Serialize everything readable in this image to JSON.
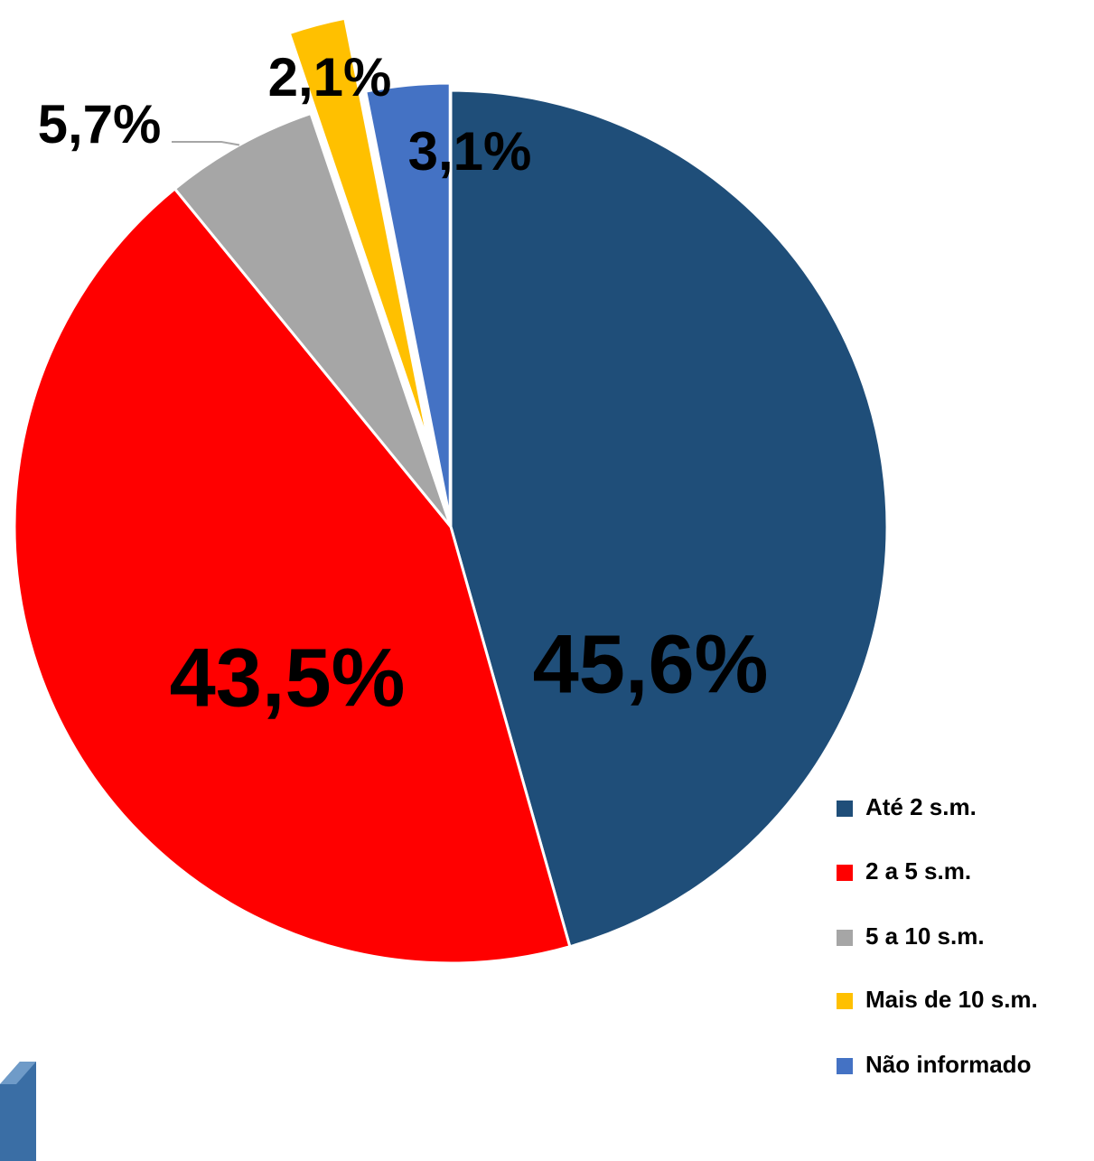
{
  "chart_data": {
    "type": "pie",
    "categories": [
      "Até 2 s.m.",
      "2 a 5 s.m.",
      "5 a 10 s.m.",
      "Mais de 10 s.m.",
      "Não informado"
    ],
    "values": [
      45.6,
      43.5,
      5.7,
      2.1,
      3.1
    ],
    "value_labels": [
      "45,6%",
      "43,5%",
      "5,7%",
      "2,1%",
      "3,1%"
    ],
    "colors": [
      "#1f4e79",
      "#ff0000",
      "#a6a6a6",
      "#ffc000",
      "#4472c4"
    ],
    "legend": "right"
  }
}
